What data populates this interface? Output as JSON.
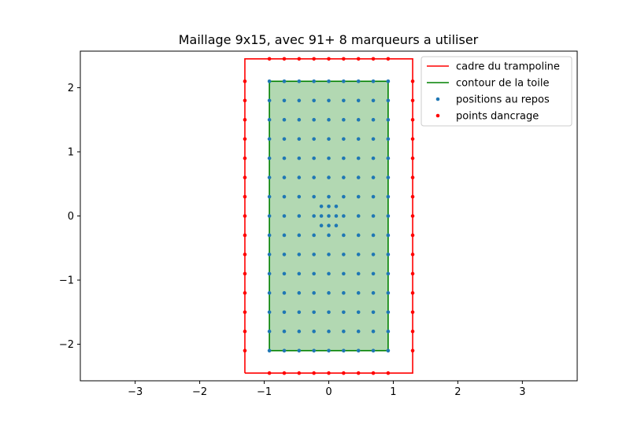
{
  "chart_data": {
    "type": "scatter",
    "title": "Maillage 9x15, avec 91+ 8 marqueurs a utiliser",
    "xlabel": "",
    "ylabel": "",
    "xlim": [
      -3.85,
      3.85
    ],
    "ylim": [
      -2.57,
      2.57
    ],
    "xticks": [
      -3,
      -2,
      -1,
      0,
      1,
      2,
      3
    ],
    "yticks": [
      -2,
      -1,
      0,
      1,
      2
    ],
    "xtick_labels": [
      "−3",
      "−2",
      "−1",
      "0",
      "1",
      "2",
      "3"
    ],
    "ytick_labels": [
      "−2",
      "−1",
      "0",
      "1",
      "2"
    ],
    "grid": false,
    "legend_position": "top-right",
    "colors": {
      "frame": "#ff0000",
      "toile": "#008000",
      "toile_fill": "#b2d8b2",
      "rest": "#1f77b4",
      "anchor": "#ff0000"
    },
    "series": [
      {
        "name": "cadre du trampoline",
        "kind": "line",
        "points": [
          [
            -1.3,
            -2.45
          ],
          [
            1.3,
            -2.45
          ],
          [
            1.3,
            2.45
          ],
          [
            -1.3,
            2.45
          ],
          [
            -1.3,
            -2.45
          ]
        ]
      },
      {
        "name": "contour de la toile",
        "kind": "line",
        "points": [
          [
            -0.92,
            -2.1
          ],
          [
            0.92,
            -2.1
          ],
          [
            0.92,
            2.1
          ],
          [
            -0.92,
            2.1
          ],
          [
            -0.92,
            -2.1
          ]
        ]
      },
      {
        "name": "positions au repos",
        "kind": "scatter",
        "grid_x": [
          -0.92,
          -0.69,
          -0.46,
          -0.23,
          0.0,
          0.23,
          0.46,
          0.69,
          0.92
        ],
        "grid_y": [
          -2.1,
          -1.8,
          -1.5,
          -1.2,
          -0.9,
          -0.6,
          -0.3,
          0.0,
          0.3,
          0.6,
          0.9,
          1.2,
          1.5,
          1.8,
          2.1
        ],
        "extra_points": [
          [
            -0.115,
            0.15
          ],
          [
            0.0,
            0.15
          ],
          [
            0.115,
            0.15
          ],
          [
            -0.115,
            0.0
          ],
          [
            0.115,
            0.0
          ],
          [
            -0.115,
            -0.15
          ],
          [
            0.0,
            -0.15
          ],
          [
            0.115,
            -0.15
          ]
        ]
      },
      {
        "name": "points dancrage",
        "kind": "scatter",
        "x_top_bottom": [
          -0.92,
          -0.69,
          -0.46,
          -0.23,
          0.0,
          0.23,
          0.46,
          0.69,
          0.92
        ],
        "y_sides": [
          -2.1,
          -1.8,
          -1.5,
          -1.2,
          -0.9,
          -0.6,
          -0.3,
          0.0,
          0.3,
          0.6,
          0.9,
          1.2,
          1.5,
          1.8,
          2.1
        ],
        "frame_x": 1.3,
        "frame_y": 2.45
      }
    ]
  }
}
